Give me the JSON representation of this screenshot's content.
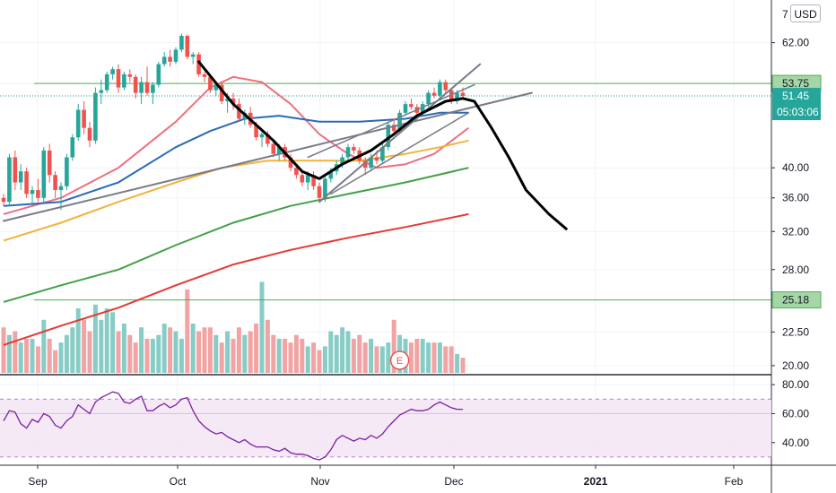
{
  "chart_data": {
    "type": "candlestick",
    "currency": "USD",
    "price_axis": {
      "scale": "log",
      "ticks": [
        "62.00",
        "53.75",
        "51.45",
        "40.00",
        "36.00",
        "32.00",
        "28.00",
        "25.18",
        "22.50",
        "20.00"
      ],
      "partial_top_tick": "7",
      "range": [
        19.5,
        72
      ]
    },
    "time_axis": {
      "labels": [
        "Sep",
        "Oct",
        "Nov",
        "Dec",
        "2021",
        "Feb"
      ]
    },
    "last_price": "51.45",
    "countdown": "05:03:06",
    "horizontal_levels": [
      {
        "price": 53.75,
        "label": "53.75",
        "color": "#4caf50"
      },
      {
        "price": 25.18,
        "label": "25.18",
        "color": "#4caf50"
      }
    ],
    "candles": [
      [
        36.0,
        36.5,
        35.0,
        35.5
      ],
      [
        35.5,
        42.0,
        35.0,
        41.5
      ],
      [
        41.5,
        42.5,
        37.0,
        38.0
      ],
      [
        38.0,
        40.5,
        37.0,
        39.5
      ],
      [
        39.5,
        40.0,
        36.0,
        36.5
      ],
      [
        36.5,
        37.5,
        35.0,
        37.0
      ],
      [
        37.0,
        38.5,
        35.5,
        36.0
      ],
      [
        36.0,
        43.0,
        35.5,
        42.5
      ],
      [
        42.5,
        43.5,
        38.0,
        39.0
      ],
      [
        39.0,
        39.5,
        36.0,
        37.0
      ],
      [
        37.0,
        38.0,
        34.5,
        37.5
      ],
      [
        37.5,
        42.0,
        37.0,
        41.5
      ],
      [
        41.5,
        45.0,
        41.0,
        44.5
      ],
      [
        44.5,
        50.0,
        44.0,
        49.0
      ],
      [
        49.0,
        50.5,
        45.0,
        46.0
      ],
      [
        46.0,
        47.0,
        43.0,
        44.0
      ],
      [
        44.0,
        53.0,
        43.5,
        52.0
      ],
      [
        52.0,
        54.5,
        50.0,
        52.5
      ],
      [
        52.5,
        56.0,
        52.0,
        55.5
      ],
      [
        55.5,
        57.0,
        54.5,
        56.5
      ],
      [
        56.5,
        57.5,
        52.0,
        53.0
      ],
      [
        53.0,
        56.0,
        52.5,
        55.5
      ],
      [
        55.5,
        56.5,
        54.0,
        55.0
      ],
      [
        55.0,
        55.5,
        51.0,
        52.0
      ],
      [
        52.0,
        55.0,
        50.0,
        54.0
      ],
      [
        54.0,
        57.0,
        51.5,
        52.0
      ],
      [
        52.0,
        54.0,
        50.0,
        53.5
      ],
      [
        53.5,
        58.0,
        53.0,
        57.5
      ],
      [
        57.5,
        60.0,
        57.0,
        59.0
      ],
      [
        59.0,
        60.5,
        57.0,
        58.0
      ],
      [
        58.0,
        61.0,
        57.5,
        60.5
      ],
      [
        60.5,
        64.0,
        60.0,
        63.5
      ],
      [
        63.5,
        63.8,
        58.5,
        59.0
      ],
      [
        59.0,
        60.0,
        57.5,
        59.5
      ],
      [
        59.5,
        60.0,
        55.0,
        55.5
      ],
      [
        55.5,
        56.0,
        54.0,
        55.0
      ],
      [
        55.0,
        55.5,
        52.0,
        52.5
      ],
      [
        52.5,
        54.0,
        51.5,
        53.5
      ],
      [
        53.5,
        54.0,
        50.0,
        50.5
      ],
      [
        50.5,
        52.0,
        48.5,
        51.0
      ],
      [
        51.0,
        52.0,
        49.0,
        50.0
      ],
      [
        50.0,
        51.0,
        47.0,
        47.5
      ],
      [
        47.5,
        49.0,
        46.5,
        48.5
      ],
      [
        48.5,
        49.5,
        46.0,
        46.5
      ],
      [
        46.5,
        47.0,
        44.0,
        44.5
      ],
      [
        44.5,
        45.5,
        43.0,
        45.0
      ],
      [
        45.0,
        45.5,
        43.0,
        43.5
      ],
      [
        43.5,
        44.0,
        41.5,
        42.0
      ],
      [
        42.0,
        43.5,
        41.0,
        43.0
      ],
      [
        43.0,
        43.5,
        41.0,
        41.5
      ],
      [
        41.5,
        42.0,
        39.5,
        40.0
      ],
      [
        40.0,
        40.5,
        38.5,
        39.0
      ],
      [
        39.0,
        39.5,
        37.5,
        38.0
      ],
      [
        38.0,
        39.5,
        37.0,
        39.0
      ],
      [
        39.0,
        39.5,
        37.0,
        37.5
      ],
      [
        37.5,
        38.0,
        35.5,
        36.0
      ],
      [
        36.0,
        39.0,
        35.5,
        38.5
      ],
      [
        38.5,
        40.0,
        38.0,
        39.5
      ],
      [
        39.5,
        41.0,
        39.0,
        40.5
      ],
      [
        40.5,
        42.0,
        40.0,
        41.5
      ],
      [
        41.5,
        43.5,
        41.0,
        43.0
      ],
      [
        43.0,
        43.5,
        42.0,
        42.5
      ],
      [
        42.5,
        43.0,
        40.5,
        41.0
      ],
      [
        41.0,
        41.5,
        39.0,
        40.0
      ],
      [
        40.0,
        42.0,
        39.5,
        41.5
      ],
      [
        41.5,
        42.5,
        40.5,
        41.0
      ],
      [
        41.0,
        43.5,
        40.5,
        43.0
      ],
      [
        43.0,
        47.0,
        42.5,
        46.5
      ],
      [
        46.5,
        47.5,
        45.0,
        45.5
      ],
      [
        45.5,
        49.0,
        45.0,
        48.5
      ],
      [
        48.5,
        50.5,
        48.0,
        50.0
      ],
      [
        50.0,
        51.0,
        49.0,
        49.5
      ],
      [
        49.5,
        50.0,
        48.0,
        48.5
      ],
      [
        48.5,
        50.5,
        48.0,
        50.0
      ],
      [
        50.0,
        52.5,
        49.5,
        52.0
      ],
      [
        52.0,
        53.0,
        51.0,
        51.5
      ],
      [
        51.5,
        54.5,
        51.0,
        54.0
      ],
      [
        54.0,
        54.5,
        52.0,
        52.5
      ],
      [
        52.5,
        53.0,
        50.0,
        50.5
      ],
      [
        50.5,
        52.5,
        50.0,
        52.0
      ],
      [
        52.0,
        53.0,
        51.0,
        51.45
      ]
    ],
    "moving_averages": [
      {
        "color": "#ef6f7f",
        "points": [
          [
            0,
            34
          ],
          [
            10,
            36
          ],
          [
            20,
            40
          ],
          [
            30,
            47
          ],
          [
            36,
            53
          ],
          [
            40,
            55
          ],
          [
            45,
            54
          ],
          [
            50,
            50
          ],
          [
            55,
            45
          ],
          [
            60,
            42
          ],
          [
            65,
            40
          ],
          [
            70,
            40.5
          ],
          [
            75,
            42
          ],
          [
            81,
            46
          ]
        ]
      },
      {
        "color": "#2a6ab8",
        "points": [
          [
            0,
            35
          ],
          [
            10,
            35.5
          ],
          [
            20,
            38
          ],
          [
            30,
            43
          ],
          [
            36,
            45.5
          ],
          [
            42,
            47.5
          ],
          [
            48,
            48
          ],
          [
            55,
            47
          ],
          [
            62,
            47
          ],
          [
            70,
            47.5
          ],
          [
            76,
            48.5
          ],
          [
            81,
            48.5
          ]
        ]
      },
      {
        "color": "#f0b43c",
        "points": [
          [
            0,
            31
          ],
          [
            10,
            33
          ],
          [
            20,
            35.5
          ],
          [
            30,
            38
          ],
          [
            38,
            40
          ],
          [
            46,
            41
          ],
          [
            55,
            41
          ],
          [
            62,
            41
          ],
          [
            70,
            42
          ],
          [
            76,
            43
          ],
          [
            81,
            44
          ]
        ]
      },
      {
        "color": "#43a047",
        "points": [
          [
            0,
            25
          ],
          [
            10,
            26.5
          ],
          [
            20,
            28
          ],
          [
            30,
            30.5
          ],
          [
            40,
            33
          ],
          [
            50,
            35
          ],
          [
            60,
            36.5
          ],
          [
            70,
            38
          ],
          [
            81,
            40
          ]
        ]
      },
      {
        "color": "#e53935",
        "points": [
          [
            0,
            21.5
          ],
          [
            10,
            23
          ],
          [
            20,
            24.5
          ],
          [
            30,
            26.5
          ],
          [
            40,
            28.5
          ],
          [
            50,
            30
          ],
          [
            60,
            31.3
          ],
          [
            70,
            32.5
          ],
          [
            81,
            34
          ]
        ]
      }
    ],
    "drawings": [
      {
        "color": "#787b86",
        "width": 2,
        "points": [
          [
            0,
            33.2
          ],
          [
            92,
            52
          ]
        ]
      },
      {
        "color": "#787b86",
        "width": 2,
        "points": [
          [
            55,
            35.5
          ],
          [
            83,
            57.5
          ]
        ]
      },
      {
        "color": "#787b86",
        "width": 1.5,
        "points": [
          [
            53,
            41.5
          ],
          [
            82,
            53.5
          ]
        ]
      },
      {
        "color": "#787b86",
        "width": 1.5,
        "points": [
          [
            57,
            36.5
          ],
          [
            81,
            48.5
          ]
        ]
      },
      {
        "color": "#000000",
        "width": 3,
        "points": [
          [
            34,
            58
          ],
          [
            40,
            50
          ],
          [
            47,
            44
          ],
          [
            52,
            39.5
          ],
          [
            55,
            38.5
          ],
          [
            59,
            40.5
          ],
          [
            64,
            42.5
          ],
          [
            68,
            45
          ],
          [
            72,
            48
          ],
          [
            77,
            50.5
          ],
          [
            80,
            51
          ],
          [
            82,
            50.5
          ],
          [
            85,
            46
          ],
          [
            88,
            41.5
          ],
          [
            91,
            37
          ],
          [
            95,
            34
          ],
          [
            98,
            32.3
          ]
        ]
      }
    ],
    "volume": {
      "bars": [
        12,
        10,
        11,
        8,
        9,
        9,
        7,
        14,
        9,
        6,
        8,
        10,
        12,
        17,
        14,
        11,
        18,
        14,
        17,
        16,
        11,
        13,
        10,
        8,
        12,
        9,
        9,
        10,
        13,
        12,
        11,
        9,
        22,
        13,
        11,
        12,
        12,
        10,
        8,
        11,
        9,
        12,
        10,
        11,
        13,
        24,
        14,
        10,
        9,
        9,
        8,
        10,
        9,
        7,
        8,
        6,
        7,
        11,
        10,
        12,
        11,
        9,
        10,
        8,
        9,
        7,
        7,
        8,
        14,
        10,
        9,
        8,
        9,
        9,
        8,
        8,
        8,
        7,
        7,
        5,
        4
      ],
      "markers": [
        {
          "index": 69,
          "label": "E"
        }
      ]
    },
    "rsi": {
      "axis_ticks": [
        "80.00",
        "60.00",
        "40.00"
      ],
      "range": [
        25,
        85
      ],
      "band": [
        30,
        70
      ],
      "color": "#7b1fa2",
      "values": [
        55,
        62,
        61,
        53,
        50,
        56,
        54,
        60,
        58,
        52,
        50,
        55,
        58,
        66,
        63,
        60,
        68,
        71,
        73,
        75,
        74,
        68,
        67,
        70,
        72,
        62,
        62,
        65,
        67,
        64,
        66,
        70,
        71,
        62,
        55,
        51,
        48,
        46,
        47,
        44,
        42,
        40,
        42,
        39,
        37,
        37,
        37,
        35,
        34,
        36,
        33,
        32,
        32,
        31,
        29,
        28,
        30,
        35,
        42,
        45,
        43,
        41,
        43,
        42,
        45,
        43,
        46,
        51,
        55,
        59,
        61,
        63,
        62,
        62,
        63,
        66,
        68,
        66,
        64,
        63,
        63
      ]
    },
    "colors": {
      "up": "#26a69a",
      "down": "#ef5350",
      "up_volume": "#88ccc6",
      "down_volume": "#f2a3a3",
      "last_price_tag": "#26a69a",
      "grid": "#f0f3fa",
      "pane_border": "#2a2e39"
    }
  }
}
